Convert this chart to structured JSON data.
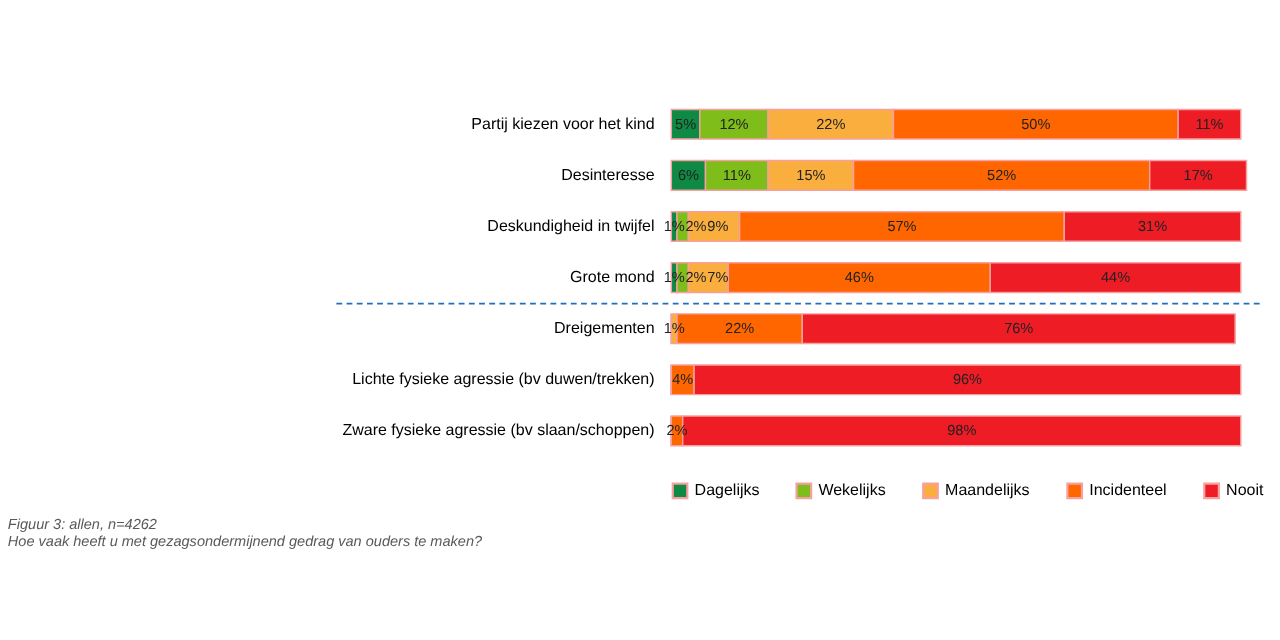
{
  "chart_data": {
    "type": "bar",
    "orientation": "horizontal",
    "stacked": true,
    "categories": [
      "Partij kiezen voor het kind",
      "Desinteresse",
      "Deskundigheid in twijfel",
      "Grote mond",
      "Dreigementen",
      "Lichte fysieke agressie (bv duwen/trekken)",
      "Zware fysieke agressie (bv slaan/schoppen)"
    ],
    "series": [
      {
        "name": "Dagelijks",
        "color": "#0e8a44",
        "values": [
          5,
          6,
          1,
          1,
          0,
          0,
          0
        ],
        "value_labels": [
          "5%",
          "6%",
          "1%",
          "1%",
          null,
          null,
          null
        ]
      },
      {
        "name": "Wekelijks",
        "color": "#7ebd1a",
        "values": [
          12,
          11,
          2,
          2,
          0,
          0,
          0
        ],
        "value_labels": [
          "12%",
          "11%",
          "2%",
          "2%",
          null,
          null,
          null
        ]
      },
      {
        "name": "Maandelijks",
        "color": "#f9ae3e",
        "values": [
          22,
          15,
          9,
          7,
          1,
          0,
          0
        ],
        "value_labels": [
          "22%",
          "15%",
          "9%",
          "7%",
          "1%",
          null,
          null
        ]
      },
      {
        "name": "Incidenteel",
        "color": "#ff6600",
        "values": [
          50,
          52,
          57,
          46,
          22,
          4,
          2
        ],
        "value_labels": [
          "50%",
          "52%",
          "57%",
          "46%",
          "22%",
          "4%",
          "2%"
        ]
      },
      {
        "name": "Nooit",
        "color": "#ee1c25",
        "values": [
          11,
          17,
          31,
          44,
          76,
          96,
          98
        ],
        "value_labels": [
          "11%",
          "17%",
          "31%",
          "44%",
          "76%",
          "96%",
          "98%"
        ]
      }
    ],
    "ref_lines": [
      {
        "axis": "y",
        "value": "Dreigementen",
        "color": "#1f6fbf",
        "line_style": "dashed"
      }
    ],
    "legend": "bottom",
    "grid": false,
    "tick_labels": "y",
    "annotations": [
      "Figuur 3: allen, n=4262",
      "Hoe vaak heeft u met gezagsondermijnend gedrag van ouders te maken?"
    ]
  }
}
